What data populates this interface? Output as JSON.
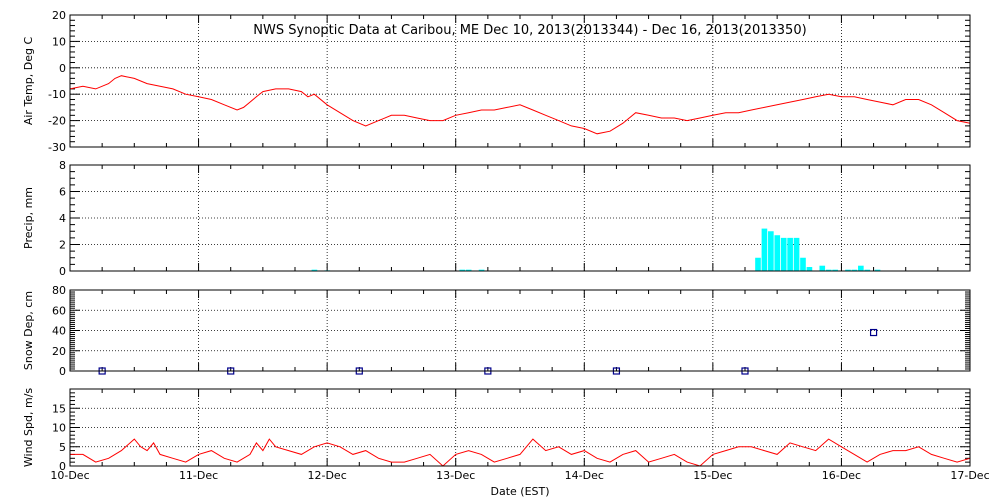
{
  "title": "NWS Synoptic Data at Caribou, ME   Dec 10, 2013(2013344) - Dec 16, 2013(2013350)",
  "xlabel": "Date (EST)",
  "x_ticks": [
    "10-Dec",
    "11-Dec",
    "12-Dec",
    "13-Dec",
    "14-Dec",
    "15-Dec",
    "16-Dec",
    "17-Dec"
  ],
  "colors": {
    "temp": "#ff0000",
    "precip": "#00ffff",
    "snow": "#00008b",
    "wind": "#ff0000"
  },
  "chart_data": [
    {
      "type": "line",
      "ylabel": "Air Temp, Deg C",
      "ylim": [
        -30,
        20
      ],
      "yticks": [
        20,
        10,
        0,
        -10,
        -20,
        -30
      ],
      "x_unit": "days since 10-Dec",
      "x": [
        0,
        0.1,
        0.2,
        0.3,
        0.35,
        0.4,
        0.5,
        0.6,
        0.7,
        0.8,
        0.9,
        1.0,
        1.1,
        1.2,
        1.3,
        1.35,
        1.4,
        1.45,
        1.5,
        1.6,
        1.7,
        1.8,
        1.85,
        1.9,
        2.0,
        2.1,
        2.2,
        2.3,
        2.4,
        2.5,
        2.6,
        2.7,
        2.8,
        2.9,
        3.0,
        3.1,
        3.2,
        3.3,
        3.4,
        3.5,
        3.6,
        3.7,
        3.8,
        3.9,
        4.0,
        4.1,
        4.2,
        4.3,
        4.4,
        4.5,
        4.6,
        4.7,
        4.8,
        4.9,
        5.0,
        5.1,
        5.2,
        5.3,
        5.4,
        5.5,
        5.6,
        5.7,
        5.8,
        5.9,
        6.0,
        6.1,
        6.2,
        6.3,
        6.4,
        6.5,
        6.6,
        6.7,
        6.8,
        6.9,
        7.0
      ],
      "values": [
        -8,
        -7,
        -8,
        -6,
        -4,
        -3,
        -4,
        -6,
        -7,
        -8,
        -10,
        -11,
        -12,
        -14,
        -16,
        -15,
        -13,
        -11,
        -9,
        -8,
        -8,
        -9,
        -11,
        -10,
        -14,
        -17,
        -20,
        -22,
        -20,
        -18,
        -18,
        -19,
        -20,
        -20,
        -18,
        -17,
        -16,
        -16,
        -15,
        -14,
        -16,
        -18,
        -20,
        -22,
        -23,
        -25,
        -24,
        -21,
        -17,
        -18,
        -19,
        -19,
        -20,
        -19,
        -18,
        -17,
        -17,
        -16,
        -15,
        -14,
        -13,
        -12,
        -11,
        -10,
        -11,
        -11,
        -12,
        -13,
        -14,
        -12,
        -12,
        -14,
        -17,
        -20,
        -21
      ]
    },
    {
      "type": "bar",
      "ylabel": "Precip, mm",
      "ylim": [
        0,
        8
      ],
      "yticks": [
        8,
        6,
        4,
        2,
        0
      ],
      "x_unit": "days since 10-Dec",
      "x": [
        1.9,
        2.0,
        3.05,
        3.1,
        3.2,
        5.35,
        5.4,
        5.45,
        5.5,
        5.55,
        5.6,
        5.65,
        5.7,
        5.75,
        5.85,
        5.9,
        5.95,
        6.05,
        6.1,
        6.15,
        6.2,
        6.28
      ],
      "values": [
        0.1,
        0.05,
        0.1,
        0.1,
        0.1,
        1.0,
        3.2,
        3.0,
        2.7,
        2.5,
        2.5,
        2.5,
        1.0,
        0.3,
        0.4,
        0.1,
        0.1,
        0.1,
        0.1,
        0.4,
        0.1,
        0.1
      ]
    },
    {
      "type": "scatter",
      "ylabel": "Snow Dep, cm",
      "ylim": [
        0,
        80
      ],
      "yticks": [
        80,
        60,
        40,
        20,
        0
      ],
      "x_unit": "days since 10-Dec",
      "x": [
        0.25,
        1.25,
        2.25,
        3.25,
        4.25,
        5.25,
        6.25
      ],
      "values": [
        0,
        0,
        0,
        0,
        0,
        0,
        38
      ]
    },
    {
      "type": "line",
      "ylabel": "Wind Spd, m/s",
      "ylim": [
        0,
        20
      ],
      "yticks": [
        15,
        10,
        5,
        0
      ],
      "x_unit": "days since 10-Dec",
      "x": [
        0,
        0.1,
        0.2,
        0.3,
        0.4,
        0.5,
        0.55,
        0.6,
        0.65,
        0.7,
        0.8,
        0.9,
        1.0,
        1.1,
        1.2,
        1.3,
        1.4,
        1.45,
        1.5,
        1.55,
        1.6,
        1.7,
        1.8,
        1.9,
        2.0,
        2.1,
        2.2,
        2.3,
        2.4,
        2.5,
        2.6,
        2.7,
        2.8,
        2.9,
        3.0,
        3.1,
        3.2,
        3.3,
        3.4,
        3.5,
        3.6,
        3.7,
        3.8,
        3.9,
        4.0,
        4.1,
        4.2,
        4.3,
        4.4,
        4.5,
        4.6,
        4.7,
        4.8,
        4.9,
        5.0,
        5.1,
        5.2,
        5.3,
        5.4,
        5.5,
        5.6,
        5.7,
        5.8,
        5.9,
        6.0,
        6.1,
        6.2,
        6.3,
        6.4,
        6.5,
        6.6,
        6.7,
        6.8,
        6.9,
        7.0
      ],
      "values": [
        3,
        3,
        1,
        2,
        4,
        7,
        5,
        4,
        6,
        3,
        2,
        1,
        3,
        4,
        2,
        1,
        3,
        6,
        4,
        7,
        5,
        4,
        3,
        5,
        6,
        5,
        3,
        4,
        2,
        1,
        1,
        2,
        3,
        0,
        3,
        4,
        3,
        1,
        2,
        3,
        7,
        4,
        5,
        3,
        4,
        2,
        1,
        3,
        4,
        1,
        2,
        3,
        1,
        0,
        3,
        4,
        5,
        5,
        4,
        3,
        6,
        5,
        4,
        7,
        5,
        3,
        1,
        3,
        4,
        4,
        5,
        3,
        2,
        1,
        2
      ]
    }
  ]
}
